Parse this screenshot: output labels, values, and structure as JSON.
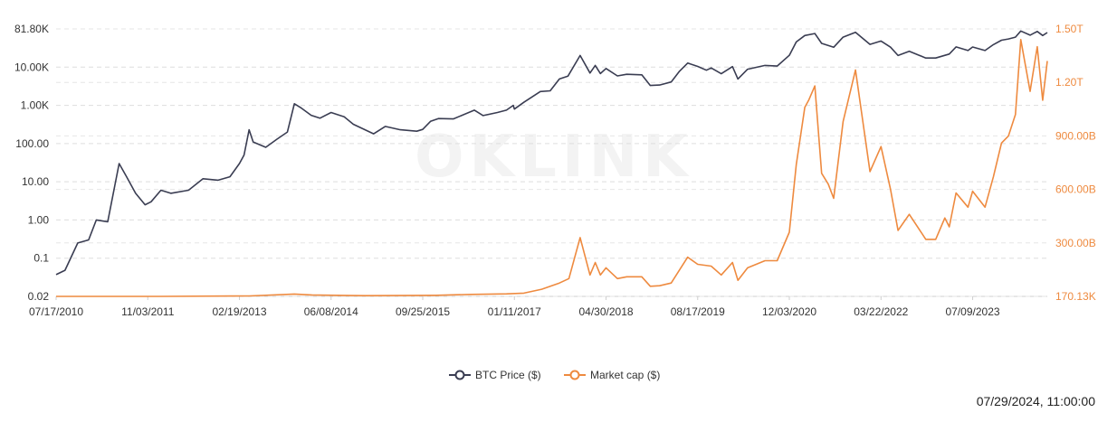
{
  "chart_data": {
    "type": "line",
    "watermark": "OKLINK",
    "timestamp": "07/29/2024, 11:00:00",
    "x_tick_labels": [
      "07/17/2010",
      "11/03/2011",
      "02/19/2013",
      "06/08/2014",
      "09/25/2015",
      "01/11/2017",
      "04/30/2018",
      "08/17/2019",
      "12/03/2020",
      "03/22/2022",
      "07/09/2023"
    ],
    "y_left": {
      "scale": "log",
      "range": [
        0.02,
        81800
      ],
      "tick_values": [
        0.02,
        0.1,
        1,
        10,
        100,
        1000,
        10000,
        81800
      ],
      "tick_labels": [
        "0.02",
        "0.1",
        "1.00",
        "10.00",
        "100.00",
        "1.00K",
        "10.00K",
        "81.80K"
      ]
    },
    "y_right": {
      "scale": "linear",
      "range": [
        0,
        1500000000000
      ],
      "tick_values": [
        0,
        300000000000,
        600000000000,
        900000000000,
        1200000000000,
        1500000000000
      ],
      "tick_labels": [
        "170.13K",
        "300.00B",
        "600.00B",
        "900.00B",
        "1.20T",
        "1.50T"
      ]
    },
    "grid": true,
    "legend_position": "bottom",
    "series": [
      {
        "name": "BTC Price ($)",
        "axis": "left",
        "color": "#3a3d52",
        "x": [
          "2010-07-17",
          "2010-09-01",
          "2010-11-06",
          "2011-01-01",
          "2011-02-10",
          "2011-04-10",
          "2011-06-08",
          "2011-07-15",
          "2011-09-01",
          "2011-10-20",
          "2011-11-20",
          "2012-01-10",
          "2012-03-01",
          "2012-06-01",
          "2012-08-15",
          "2012-11-01",
          "2013-01-01",
          "2013-02-19",
          "2013-03-15",
          "2013-04-10",
          "2013-05-01",
          "2013-07-05",
          "2013-09-01",
          "2013-10-25",
          "2013-11-30",
          "2014-01-05",
          "2014-02-25",
          "2014-04-11",
          "2014-06-08",
          "2014-08-15",
          "2014-10-01",
          "2015-01-14",
          "2015-03-15",
          "2015-06-01",
          "2015-08-25",
          "2015-09-25",
          "2015-11-04",
          "2015-12-15",
          "2016-03-01",
          "2016-06-18",
          "2016-08-02",
          "2016-10-15",
          "2016-12-01",
          "2017-01-05",
          "2017-01-11",
          "2017-03-01",
          "2017-05-25",
          "2017-07-15",
          "2017-09-01",
          "2017-10-15",
          "2017-12-17",
          "2018-02-06",
          "2018-03-05",
          "2018-04-01",
          "2018-04-30",
          "2018-06-28",
          "2018-08-15",
          "2018-11-01",
          "2018-12-15",
          "2019-02-01",
          "2019-04-02",
          "2019-05-15",
          "2019-06-26",
          "2019-08-17",
          "2019-10-01",
          "2019-10-26",
          "2019-12-17",
          "2020-02-13",
          "2020-03-12",
          "2020-05-01",
          "2020-07-30",
          "2020-10-01",
          "2020-12-03",
          "2021-01-08",
          "2021-02-21",
          "2021-04-14",
          "2021-05-19",
          "2021-07-20",
          "2021-09-07",
          "2021-11-10",
          "2022-01-24",
          "2022-03-22",
          "2022-05-10",
          "2022-06-18",
          "2022-08-15",
          "2022-11-09",
          "2022-12-30",
          "2023-03-10",
          "2023-04-14",
          "2023-06-15",
          "2023-07-09",
          "2023-09-11",
          "2023-10-24",
          "2023-12-05",
          "2024-01-10",
          "2024-02-15",
          "2024-03-14",
          "2024-05-01",
          "2024-06-07",
          "2024-07-05",
          "2024-07-29"
        ],
        "values": [
          0.05,
          0.06,
          0.25,
          0.3,
          1.0,
          0.9,
          30,
          14,
          5,
          2.5,
          3,
          6,
          5,
          6,
          12,
          11,
          13.5,
          30,
          50,
          230,
          110,
          80,
          130,
          200,
          1100,
          850,
          550,
          460,
          650,
          500,
          320,
          180,
          280,
          230,
          210,
          235,
          380,
          450,
          440,
          750,
          540,
          650,
          750,
          1000,
          800,
          1200,
          2300,
          2400,
          4900,
          5800,
          19000,
          7000,
          11000,
          6800,
          9200,
          5900,
          6500,
          6300,
          3300,
          3400,
          4100,
          7800,
          12500,
          10400,
          8300,
          9500,
          6700,
          10300,
          4900,
          8800,
          11000,
          10600,
          19200,
          40000,
          57000,
          63500,
          37000,
          29800,
          52000,
          68000,
          35000,
          42000,
          30000,
          19000,
          24000,
          16500,
          16500,
          20500,
          30400,
          25000,
          30300,
          25000,
          34500,
          44000,
          47000,
          52000,
          73000,
          58000,
          71000,
          57000,
          67000
        ]
      },
      {
        "name": "Market cap ($)",
        "axis": "right",
        "color": "#ee8a3f",
        "x": [
          "2010-07-17",
          "2012-01-01",
          "2013-04-10",
          "2013-11-30",
          "2014-03-01",
          "2014-12-01",
          "2015-12-01",
          "2016-06-01",
          "2016-12-01",
          "2017-03-01",
          "2017-06-01",
          "2017-09-01",
          "2017-10-20",
          "2017-12-17",
          "2018-02-06",
          "2018-03-05",
          "2018-04-01",
          "2018-04-30",
          "2018-06-28",
          "2018-08-15",
          "2018-11-01",
          "2018-12-15",
          "2019-02-01",
          "2019-04-02",
          "2019-06-26",
          "2019-08-17",
          "2019-10-26",
          "2019-12-17",
          "2020-02-13",
          "2020-03-12",
          "2020-05-01",
          "2020-07-30",
          "2020-10-01",
          "2020-12-03",
          "2021-01-08",
          "2021-02-21",
          "2021-03-13",
          "2021-04-14",
          "2021-05-19",
          "2021-06-22",
          "2021-07-20",
          "2021-09-07",
          "2021-11-10",
          "2022-01-24",
          "2022-03-22",
          "2022-05-10",
          "2022-06-18",
          "2022-08-15",
          "2022-11-09",
          "2022-12-30",
          "2023-02-15",
          "2023-03-10",
          "2023-04-14",
          "2023-06-15",
          "2023-07-09",
          "2023-09-11",
          "2023-10-24",
          "2023-12-05",
          "2024-01-10",
          "2024-02-15",
          "2024-03-14",
          "2024-05-01",
          "2024-06-07",
          "2024-07-05",
          "2024-07-29"
        ],
        "values": [
          0,
          0.0001,
          0.0025,
          0.013,
          0.008,
          0.004,
          0.006,
          0.011,
          0.014,
          0.018,
          0.04,
          0.075,
          0.1,
          0.33,
          0.12,
          0.19,
          0.12,
          0.16,
          0.1,
          0.11,
          0.11,
          0.057,
          0.06,
          0.075,
          0.22,
          0.18,
          0.17,
          0.12,
          0.19,
          0.09,
          0.16,
          0.2,
          0.2,
          0.36,
          0.74,
          1.06,
          1.1,
          1.18,
          0.69,
          0.63,
          0.55,
          0.98,
          1.27,
          0.7,
          0.84,
          0.6,
          0.37,
          0.46,
          0.32,
          0.32,
          0.44,
          0.39,
          0.58,
          0.5,
          0.59,
          0.5,
          0.67,
          0.86,
          0.9,
          1.02,
          1.44,
          1.15,
          1.4,
          1.1,
          1.32
        ]
      }
    ]
  }
}
